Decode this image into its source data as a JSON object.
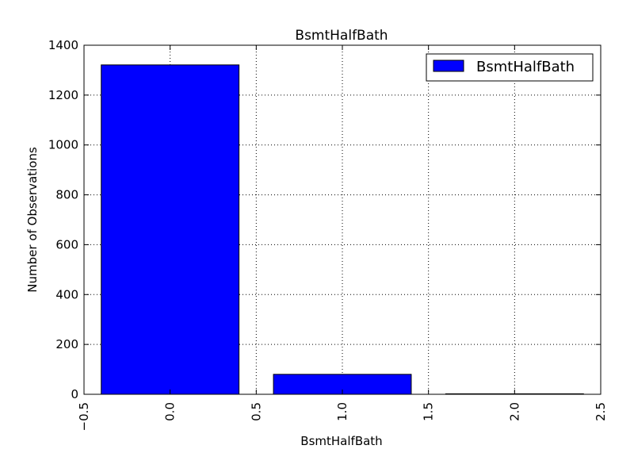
{
  "chart_data": {
    "type": "bar",
    "title": "BsmtHalfBath",
    "xlabel": "BsmtHalfBath",
    "ylabel": "Number of Observations",
    "categories": [
      0,
      1,
      2
    ],
    "series": [
      {
        "name": "BsmtHalfBath",
        "values": [
          1321,
          80,
          2
        ]
      }
    ],
    "bar_width": 0.8,
    "xlim": [
      -0.5,
      2.5
    ],
    "ylim": [
      0,
      1400
    ],
    "xticks": [
      "−0.5",
      "0.0",
      "0.5",
      "1.0",
      "1.5",
      "2.0",
      "2.5"
    ],
    "xtick_values": [
      -0.5,
      0.0,
      0.5,
      1.0,
      1.5,
      2.0,
      2.5
    ],
    "yticks": [
      "0",
      "200",
      "400",
      "600",
      "800",
      "1000",
      "1200",
      "1400"
    ],
    "ytick_values": [
      0,
      200,
      400,
      600,
      800,
      1000,
      1200,
      1400
    ],
    "xtick_rotation": "vertical",
    "grid": true,
    "legend_position": "top-right",
    "colors": {
      "bar": "#0000ff",
      "edge": "#000000",
      "grid": "#000000"
    }
  }
}
